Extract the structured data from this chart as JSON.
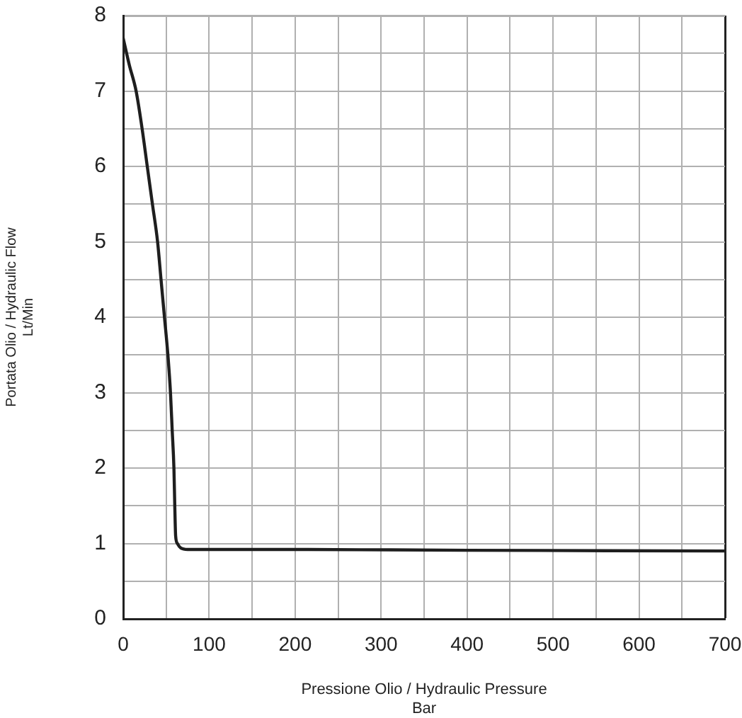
{
  "chart_data": {
    "type": "line",
    "xlabel": "Pressione Olio / Hydraulic Pressure\nBar",
    "ylabel": "Portata Olio / Hydraulic Flow\nLt/Min",
    "x": [
      0,
      7,
      15,
      22,
      28,
      34,
      40,
      44,
      48,
      52,
      55,
      57,
      59,
      60,
      61,
      63,
      67,
      75,
      200,
      400,
      700
    ],
    "series": [
      {
        "color": "#1e1e1e",
        "values": [
          7.7,
          7.35,
          7.0,
          6.5,
          6.0,
          5.5,
          5.0,
          4.5,
          4.0,
          3.5,
          3.0,
          2.5,
          2.0,
          1.5,
          1.1,
          1.0,
          0.94,
          0.92,
          0.92,
          0.91,
          0.9
        ]
      }
    ],
    "xlim": [
      0,
      700
    ],
    "xticks": [
      0,
      {
        "value": 50,
        "label": null
      },
      100,
      {
        "value": 150,
        "label": null
      },
      200,
      {
        "value": 250,
        "label": null
      },
      300,
      {
        "value": 350,
        "label": null
      },
      400,
      {
        "value": 450,
        "label": null
      },
      500,
      {
        "value": 550,
        "label": null
      },
      600,
      {
        "value": 650,
        "label": null
      },
      700
    ],
    "ylim": [
      0,
      8
    ],
    "yticks": [
      0,
      {
        "value": 0.5,
        "label": null
      },
      1,
      {
        "value": 1.5,
        "label": null
      },
      2,
      {
        "value": 2.5,
        "label": null
      },
      3,
      {
        "value": 3.5,
        "label": null
      },
      4,
      {
        "value": 4.5,
        "label": null
      },
      5,
      {
        "value": 5.5,
        "label": null
      },
      6,
      {
        "value": 6.5,
        "label": null
      },
      7,
      {
        "value": 7.5,
        "label": null
      },
      8
    ],
    "grid": true,
    "line_style": "solid"
  }
}
